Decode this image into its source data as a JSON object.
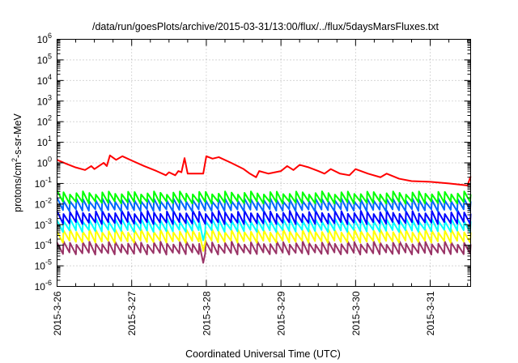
{
  "chart_data": {
    "type": "line",
    "title": "/data/run/goesPlots/archive/2015-03-31/13:00/flux/../flux/5daysMarsFluxes.txt",
    "xlabel": "Coordinated Universal Time (UTC)",
    "ylabel": {
      "base": "protons/cm",
      "sup": "2",
      "rest": "-s-sr-MeV"
    },
    "yscale": "log",
    "ylim": [
      "1e-6",
      "1e6"
    ],
    "xlim": [
      "2015-03-26 00:00",
      "2015-03-31 13:00"
    ],
    "grid": true,
    "x_ticks": [
      "2015-3-26",
      "2015-3-27",
      "2015-3-28",
      "2015-3-29",
      "2015-3-30",
      "2015-3-31"
    ],
    "y_ticks": [
      {
        "base": "10",
        "exp": "6"
      },
      {
        "base": "10",
        "exp": "5"
      },
      {
        "base": "10",
        "exp": "4"
      },
      {
        "base": "10",
        "exp": "3"
      },
      {
        "base": "10",
        "exp": "2"
      },
      {
        "base": "10",
        "exp": "1"
      },
      {
        "base": "10",
        "exp": "0"
      },
      {
        "base": "10",
        "exp": "-1"
      },
      {
        "base": "10",
        "exp": "-2"
      },
      {
        "base": "10",
        "exp": "-3"
      },
      {
        "base": "10",
        "exp": "-4"
      },
      {
        "base": "10",
        "exp": "-5"
      },
      {
        "base": "10",
        "exp": "-6"
      }
    ],
    "series": [
      {
        "color": "#ff0000",
        "description": "top channel, slowly decaying with periodic step increases",
        "points": [
          [
            "2015-03-26 00:00",
            1.4
          ],
          [
            "2015-03-26 03:00",
            0.9
          ],
          [
            "2015-03-26 06:00",
            0.6
          ],
          [
            "2015-03-26 09:00",
            0.45
          ],
          [
            "2015-03-26 11:00",
            0.7
          ],
          [
            "2015-03-26 12:00",
            0.5
          ],
          [
            "2015-03-26 15:00",
            1.0
          ],
          [
            "2015-03-26 16:00",
            0.7
          ],
          [
            "2015-03-26 17:00",
            2.3
          ],
          [
            "2015-03-26 19:00",
            1.4
          ],
          [
            "2015-03-26 21:00",
            2.1
          ],
          [
            "2015-03-27 00:00",
            1.3
          ],
          [
            "2015-03-27 04:00",
            0.7
          ],
          [
            "2015-03-27 08:00",
            0.4
          ],
          [
            "2015-03-27 11:00",
            0.25
          ],
          [
            "2015-03-27 12:00",
            0.35
          ],
          [
            "2015-03-27 14:00",
            0.25
          ],
          [
            "2015-03-27 15:00",
            0.4
          ],
          [
            "2015-03-27 16:00",
            0.35
          ],
          [
            "2015-03-27 17:00",
            1.7
          ],
          [
            "2015-03-27 18:00",
            0.3
          ],
          [
            "2015-03-27 20:00",
            0.3
          ],
          [
            "2015-03-27 23:00",
            0.3
          ],
          [
            "2015-03-28 00:00",
            2.1
          ],
          [
            "2015-03-28 02:00",
            1.6
          ],
          [
            "2015-03-28 04:00",
            1.9
          ],
          [
            "2015-03-28 08:00",
            1.0
          ],
          [
            "2015-03-28 12:00",
            0.5
          ],
          [
            "2015-03-28 14:00",
            0.3
          ],
          [
            "2015-03-28 16:00",
            0.2
          ],
          [
            "2015-03-28 17:00",
            0.4
          ],
          [
            "2015-03-28 20:00",
            0.3
          ],
          [
            "2015-03-29 00:00",
            0.4
          ],
          [
            "2015-03-29 02:00",
            0.7
          ],
          [
            "2015-03-29 04:00",
            0.45
          ],
          [
            "2015-03-29 06:00",
            0.8
          ],
          [
            "2015-03-29 09:00",
            0.6
          ],
          [
            "2015-03-29 12:00",
            0.4
          ],
          [
            "2015-03-29 14:00",
            0.3
          ],
          [
            "2015-03-29 16:00",
            0.5
          ],
          [
            "2015-03-29 19:00",
            0.3
          ],
          [
            "2015-03-29 22:00",
            0.25
          ],
          [
            "2015-03-30 00:00",
            0.5
          ],
          [
            "2015-03-30 04:00",
            0.3
          ],
          [
            "2015-03-30 08:00",
            0.2
          ],
          [
            "2015-03-30 10:00",
            0.3
          ],
          [
            "2015-03-30 14:00",
            0.17
          ],
          [
            "2015-03-30 18:00",
            0.13
          ],
          [
            "2015-03-31 00:00",
            0.12
          ],
          [
            "2015-03-31 06:00",
            0.1
          ],
          [
            "2015-03-31 12:00",
            0.08
          ],
          [
            "2015-03-31 13:00",
            0.22
          ]
        ]
      },
      {
        "color": "#00ff00",
        "description": "sawtooth channel",
        "typical_range": [
          "0.012",
          "0.035"
        ]
      },
      {
        "color": "#0066ff",
        "description": "sawtooth channel",
        "typical_range": [
          "0.005",
          "0.016"
        ]
      },
      {
        "color": "#0000ff",
        "description": "sawtooth channel",
        "typical_range": [
          "0.0012",
          "0.004"
        ]
      },
      {
        "color": "#00ffff",
        "description": "sawtooth channel",
        "typical_range": [
          "0.0005",
          "0.0017"
        ]
      },
      {
        "color": "#ffff00",
        "description": "sawtooth channel",
        "typical_range": [
          "0.00015",
          "0.0005"
        ]
      },
      {
        "color": "#993366",
        "description": "lowest sawtooth channel",
        "typical_range": [
          "0.00004",
          "0.00013"
        ]
      }
    ]
  }
}
